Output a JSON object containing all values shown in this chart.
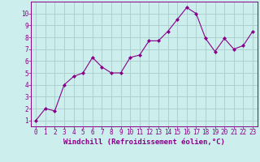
{
  "xlabel": "Windchill (Refroidissement éolien,°C)",
  "x": [
    0,
    1,
    2,
    3,
    4,
    5,
    6,
    7,
    8,
    9,
    10,
    11,
    12,
    13,
    14,
    15,
    16,
    17,
    18,
    19,
    20,
    21,
    22,
    23
  ],
  "y": [
    1.0,
    2.0,
    1.8,
    4.0,
    4.7,
    5.0,
    6.3,
    5.5,
    5.0,
    5.0,
    6.3,
    6.5,
    7.7,
    7.7,
    8.5,
    9.5,
    10.5,
    10.0,
    7.9,
    6.8,
    7.9,
    7.0,
    7.3,
    8.5
  ],
  "line_color": "#880088",
  "marker": "D",
  "marker_size": 2.0,
  "line_width": 0.8,
  "bg_color": "#cceeed",
  "grid_color": "#aacccc",
  "tick_color": "#880088",
  "label_color": "#880088",
  "xlim": [
    -0.5,
    23.5
  ],
  "ylim": [
    0.5,
    11.0
  ],
  "yticks": [
    1,
    2,
    3,
    4,
    5,
    6,
    7,
    8,
    9,
    10
  ],
  "xticks": [
    0,
    1,
    2,
    3,
    4,
    5,
    6,
    7,
    8,
    9,
    10,
    11,
    12,
    13,
    14,
    15,
    16,
    17,
    18,
    19,
    20,
    21,
    22,
    23
  ],
  "tick_fontsize": 5.5,
  "xlabel_fontsize": 6.5
}
